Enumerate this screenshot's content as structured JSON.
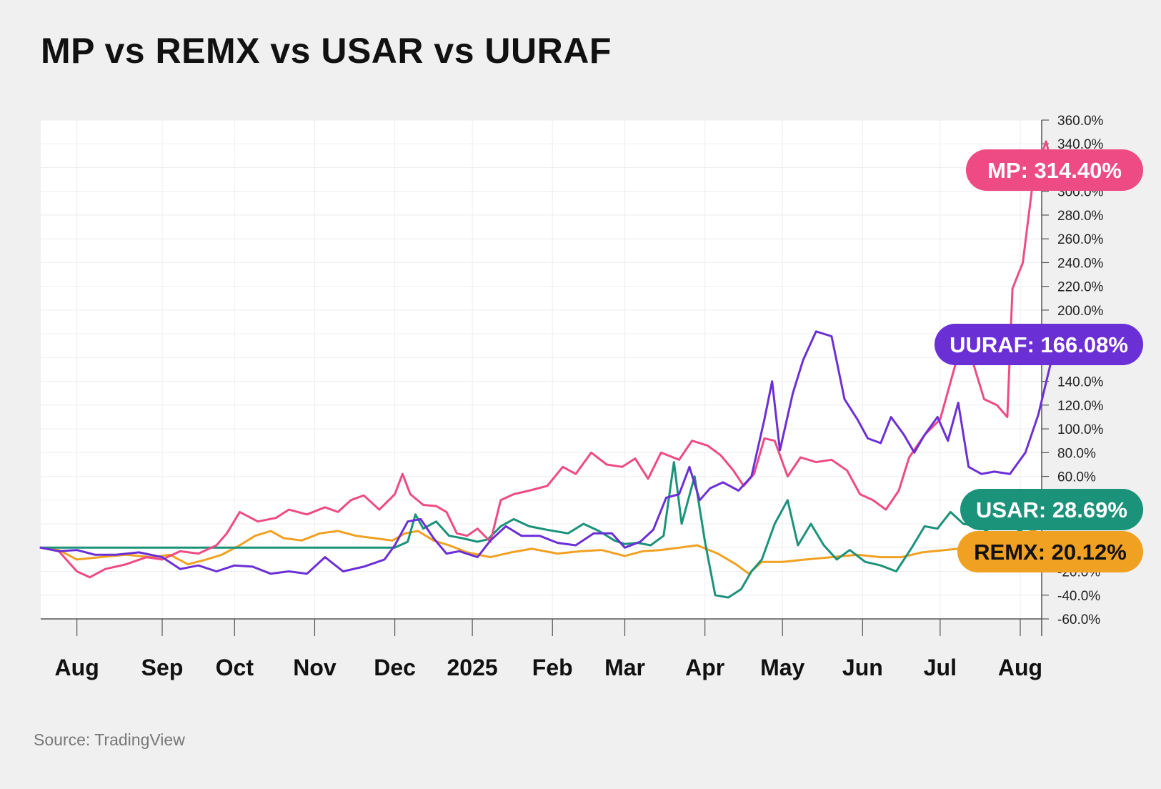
{
  "title": "MP vs REMX vs USAR vs UURAF",
  "source": "Source: TradingView",
  "chart_data": {
    "type": "line",
    "x_type": "date",
    "ylim": [
      -60,
      360
    ],
    "x_range": [
      "2024-07-18",
      "2025-08-01"
    ],
    "y_ticks": [
      "360.0%",
      "340.0%",
      "300.0%",
      "280.0%",
      "260.0%",
      "240.0%",
      "220.0%",
      "200.0%",
      "140.0%",
      "120.0%",
      "100.0%",
      "80.0%",
      "60.0%",
      "-20.0%",
      "-40.0%",
      "-60.0%"
    ],
    "y_tick_values": [
      360,
      340,
      300,
      280,
      260,
      240,
      220,
      200,
      140,
      120,
      100,
      80,
      60,
      -20,
      -40,
      -60
    ],
    "x_ticks": [
      {
        "label": "Aug",
        "date": "2024-08-01"
      },
      {
        "label": "Sep",
        "date": "2024-09-03"
      },
      {
        "label": "Oct",
        "date": "2024-10-01"
      },
      {
        "label": "Nov",
        "date": "2024-11-01"
      },
      {
        "label": "Dec",
        "date": "2024-12-02"
      },
      {
        "label": "2025",
        "date": "2025-01-01"
      },
      {
        "label": "Feb",
        "date": "2025-02-01"
      },
      {
        "label": "Mar",
        "date": "2025-03-01"
      },
      {
        "label": "Apr",
        "date": "2025-04-01"
      },
      {
        "label": "May",
        "date": "2025-05-01"
      },
      {
        "label": "Jun",
        "date": "2025-06-01"
      },
      {
        "label": "Jul",
        "date": "2025-07-01"
      },
      {
        "label": "Aug",
        "date": "2025-08-01"
      }
    ],
    "grid": true,
    "legend": "end-of-line labels on right",
    "series": [
      {
        "name": "MP",
        "label": "MP: 314.40%",
        "color": "#ee4b84",
        "label_text_color": "#ffffff",
        "points": [
          [
            "2024-07-18",
            0
          ],
          [
            "2024-07-25",
            -3
          ],
          [
            "2024-08-01",
            -20
          ],
          [
            "2024-08-06",
            -25
          ],
          [
            "2024-08-12",
            -18
          ],
          [
            "2024-08-20",
            -14
          ],
          [
            "2024-08-28",
            -8
          ],
          [
            "2024-09-03",
            -10
          ],
          [
            "2024-09-10",
            -3
          ],
          [
            "2024-09-17",
            -5
          ],
          [
            "2024-09-24",
            2
          ],
          [
            "2024-09-28",
            12
          ],
          [
            "2024-10-03",
            30
          ],
          [
            "2024-10-10",
            22
          ],
          [
            "2024-10-17",
            25
          ],
          [
            "2024-10-22",
            32
          ],
          [
            "2024-10-29",
            28
          ],
          [
            "2024-11-05",
            34
          ],
          [
            "2024-11-10",
            30
          ],
          [
            "2024-11-15",
            40
          ],
          [
            "2024-11-20",
            44
          ],
          [
            "2024-11-26",
            32
          ],
          [
            "2024-12-02",
            45
          ],
          [
            "2024-12-05",
            62
          ],
          [
            "2024-12-08",
            45
          ],
          [
            "2024-12-13",
            36
          ],
          [
            "2024-12-18",
            35
          ],
          [
            "2024-12-22",
            30
          ],
          [
            "2024-12-26",
            12
          ],
          [
            "2024-12-30",
            10
          ],
          [
            "2025-01-03",
            16
          ],
          [
            "2025-01-08",
            5
          ],
          [
            "2025-01-12",
            40
          ],
          [
            "2025-01-17",
            45
          ],
          [
            "2025-01-23",
            48
          ],
          [
            "2025-01-30",
            52
          ],
          [
            "2025-02-05",
            68
          ],
          [
            "2025-02-10",
            62
          ],
          [
            "2025-02-16",
            80
          ],
          [
            "2025-02-22",
            70
          ],
          [
            "2025-02-28",
            68
          ],
          [
            "2025-03-05",
            75
          ],
          [
            "2025-03-10",
            58
          ],
          [
            "2025-03-15",
            80
          ],
          [
            "2025-03-22",
            74
          ],
          [
            "2025-03-27",
            90
          ],
          [
            "2025-04-02",
            86
          ],
          [
            "2025-04-07",
            78
          ],
          [
            "2025-04-12",
            65
          ],
          [
            "2025-04-16",
            52
          ],
          [
            "2025-04-20",
            62
          ],
          [
            "2025-04-24",
            92
          ],
          [
            "2025-04-28",
            90
          ],
          [
            "2025-05-03",
            60
          ],
          [
            "2025-05-08",
            76
          ],
          [
            "2025-05-14",
            72
          ],
          [
            "2025-05-20",
            74
          ],
          [
            "2025-05-26",
            65
          ],
          [
            "2025-05-31",
            45
          ],
          [
            "2025-06-05",
            40
          ],
          [
            "2025-06-10",
            32
          ],
          [
            "2025-06-15",
            48
          ],
          [
            "2025-06-19",
            76
          ],
          [
            "2025-06-25",
            95
          ],
          [
            "2025-07-01",
            108
          ],
          [
            "2025-07-07",
            155
          ],
          [
            "2025-07-12",
            168
          ],
          [
            "2025-07-18",
            125
          ],
          [
            "2025-07-23",
            120
          ],
          [
            "2025-07-27",
            110
          ],
          [
            "2025-07-29",
            218
          ],
          [
            "2025-08-02",
            240
          ],
          [
            "2025-08-06",
            310
          ],
          [
            "2025-08-11",
            342
          ],
          [
            "2025-08-14",
            314.4
          ]
        ]
      },
      {
        "name": "UURAF",
        "label": "UURAF: 166.08%",
        "color": "#6b2fd6",
        "label_text_color": "#ffffff",
        "points": [
          [
            "2024-07-18",
            0
          ],
          [
            "2024-07-25",
            -3
          ],
          [
            "2024-08-01",
            -2
          ],
          [
            "2024-08-08",
            -6
          ],
          [
            "2024-08-16",
            -6
          ],
          [
            "2024-08-25",
            -4
          ],
          [
            "2024-09-03",
            -8
          ],
          [
            "2024-09-10",
            -18
          ],
          [
            "2024-09-17",
            -15
          ],
          [
            "2024-09-24",
            -20
          ],
          [
            "2024-10-01",
            -15
          ],
          [
            "2024-10-08",
            -16
          ],
          [
            "2024-10-15",
            -22
          ],
          [
            "2024-10-22",
            -20
          ],
          [
            "2024-10-29",
            -22
          ],
          [
            "2024-11-05",
            -8
          ],
          [
            "2024-11-12",
            -20
          ],
          [
            "2024-11-20",
            -16
          ],
          [
            "2024-11-28",
            -10
          ],
          [
            "2024-12-02",
            2
          ],
          [
            "2024-12-07",
            22
          ],
          [
            "2024-12-12",
            24
          ],
          [
            "2024-12-17",
            8
          ],
          [
            "2024-12-22",
            -5
          ],
          [
            "2024-12-27",
            -3
          ],
          [
            "2025-01-03",
            -8
          ],
          [
            "2025-01-08",
            6
          ],
          [
            "2025-01-14",
            18
          ],
          [
            "2025-01-20",
            10
          ],
          [
            "2025-01-27",
            10
          ],
          [
            "2025-02-03",
            4
          ],
          [
            "2025-02-10",
            2
          ],
          [
            "2025-02-17",
            12
          ],
          [
            "2025-02-24",
            12
          ],
          [
            "2025-03-01",
            0
          ],
          [
            "2025-03-07",
            5
          ],
          [
            "2025-03-12",
            15
          ],
          [
            "2025-03-17",
            42
          ],
          [
            "2025-03-22",
            45
          ],
          [
            "2025-03-26",
            68
          ],
          [
            "2025-03-30",
            40
          ],
          [
            "2025-04-03",
            50
          ],
          [
            "2025-04-08",
            55
          ],
          [
            "2025-04-14",
            48
          ],
          [
            "2025-04-19",
            60
          ],
          [
            "2025-04-24",
            108
          ],
          [
            "2025-04-27",
            140
          ],
          [
            "2025-04-30",
            82
          ],
          [
            "2025-05-05",
            130
          ],
          [
            "2025-05-09",
            158
          ],
          [
            "2025-05-14",
            182
          ],
          [
            "2025-05-20",
            178
          ],
          [
            "2025-05-25",
            125
          ],
          [
            "2025-05-30",
            108
          ],
          [
            "2025-06-03",
            92
          ],
          [
            "2025-06-08",
            88
          ],
          [
            "2025-06-12",
            110
          ],
          [
            "2025-06-17",
            95
          ],
          [
            "2025-06-21",
            80
          ],
          [
            "2025-06-25",
            95
          ],
          [
            "2025-06-30",
            110
          ],
          [
            "2025-07-04",
            90
          ],
          [
            "2025-07-08",
            122
          ],
          [
            "2025-07-12",
            68
          ],
          [
            "2025-07-17",
            62
          ],
          [
            "2025-07-22",
            64
          ],
          [
            "2025-07-28",
            62
          ],
          [
            "2025-08-03",
            80
          ],
          [
            "2025-08-08",
            112
          ],
          [
            "2025-08-14",
            166.08
          ]
        ]
      },
      {
        "name": "USAR",
        "label": "USAR: 28.69%",
        "color": "#1b927a",
        "label_text_color": "#ffffff",
        "points": [
          [
            "2024-07-18",
            0
          ],
          [
            "2024-12-02",
            0
          ],
          [
            "2024-12-07",
            5
          ],
          [
            "2024-12-10",
            28
          ],
          [
            "2024-12-13",
            16
          ],
          [
            "2024-12-18",
            22
          ],
          [
            "2024-12-23",
            10
          ],
          [
            "2024-12-28",
            8
          ],
          [
            "2025-01-03",
            5
          ],
          [
            "2025-01-07",
            7
          ],
          [
            "2025-01-12",
            18
          ],
          [
            "2025-01-17",
            24
          ],
          [
            "2025-01-23",
            18
          ],
          [
            "2025-01-30",
            15
          ],
          [
            "2025-02-07",
            12
          ],
          [
            "2025-02-13",
            20
          ],
          [
            "2025-02-19",
            14
          ],
          [
            "2025-02-25",
            6
          ],
          [
            "2025-03-01",
            3
          ],
          [
            "2025-03-06",
            4
          ],
          [
            "2025-03-11",
            2
          ],
          [
            "2025-03-16",
            10
          ],
          [
            "2025-03-20",
            72
          ],
          [
            "2025-03-23",
            20
          ],
          [
            "2025-03-28",
            60
          ],
          [
            "2025-04-01",
            5
          ],
          [
            "2025-04-05",
            -40
          ],
          [
            "2025-04-10",
            -42
          ],
          [
            "2025-04-15",
            -35
          ],
          [
            "2025-04-19",
            -20
          ],
          [
            "2025-04-23",
            -10
          ],
          [
            "2025-04-28",
            20
          ],
          [
            "2025-05-03",
            40
          ],
          [
            "2025-05-07",
            2
          ],
          [
            "2025-05-12",
            20
          ],
          [
            "2025-05-17",
            2
          ],
          [
            "2025-05-22",
            -10
          ],
          [
            "2025-05-27",
            -2
          ],
          [
            "2025-06-02",
            -12
          ],
          [
            "2025-06-08",
            -15
          ],
          [
            "2025-06-14",
            -20
          ],
          [
            "2025-06-20",
            0
          ],
          [
            "2025-06-25",
            18
          ],
          [
            "2025-06-30",
            16
          ],
          [
            "2025-07-05",
            30
          ],
          [
            "2025-07-10",
            20
          ],
          [
            "2025-07-16",
            18
          ],
          [
            "2025-07-22",
            10
          ],
          [
            "2025-07-26",
            8
          ],
          [
            "2025-08-14",
            28.69
          ]
        ]
      },
      {
        "name": "REMX",
        "label": "REMX: 20.12%",
        "color": "#f0a122",
        "label_text_color": "#111111",
        "points": [
          [
            "2024-07-18",
            0
          ],
          [
            "2024-07-25",
            -2
          ],
          [
            "2024-08-01",
            -10
          ],
          [
            "2024-08-10",
            -8
          ],
          [
            "2024-08-20",
            -6
          ],
          [
            "2024-08-30",
            -8
          ],
          [
            "2024-09-06",
            -6
          ],
          [
            "2024-09-13",
            -14
          ],
          [
            "2024-09-20",
            -10
          ],
          [
            "2024-09-26",
            -6
          ],
          [
            "2024-10-03",
            2
          ],
          [
            "2024-10-09",
            10
          ],
          [
            "2024-10-15",
            14
          ],
          [
            "2024-10-20",
            8
          ],
          [
            "2024-10-27",
            6
          ],
          [
            "2024-11-03",
            12
          ],
          [
            "2024-11-10",
            14
          ],
          [
            "2024-11-17",
            10
          ],
          [
            "2024-11-24",
            8
          ],
          [
            "2024-12-01",
            6
          ],
          [
            "2024-12-06",
            12
          ],
          [
            "2024-12-11",
            14
          ],
          [
            "2024-12-17",
            6
          ],
          [
            "2024-12-23",
            2
          ],
          [
            "2024-12-30",
            -4
          ],
          [
            "2025-01-08",
            -8
          ],
          [
            "2025-01-16",
            -4
          ],
          [
            "2025-01-24",
            -1
          ],
          [
            "2025-02-03",
            -5
          ],
          [
            "2025-02-12",
            -3
          ],
          [
            "2025-02-20",
            -2
          ],
          [
            "2025-03-01",
            -7
          ],
          [
            "2025-03-08",
            -3
          ],
          [
            "2025-03-15",
            -2
          ],
          [
            "2025-03-22",
            0
          ],
          [
            "2025-03-29",
            2
          ],
          [
            "2025-04-06",
            -5
          ],
          [
            "2025-04-13",
            -14
          ],
          [
            "2025-04-18",
            -22
          ],
          [
            "2025-04-23",
            -12
          ],
          [
            "2025-05-01",
            -12
          ],
          [
            "2025-05-10",
            -10
          ],
          [
            "2025-05-20",
            -8
          ],
          [
            "2025-05-30",
            -6
          ],
          [
            "2025-06-08",
            -8
          ],
          [
            "2025-06-16",
            -8
          ],
          [
            "2025-06-24",
            -4
          ],
          [
            "2025-07-03",
            -2
          ],
          [
            "2025-07-12",
            0
          ],
          [
            "2025-07-20",
            2
          ],
          [
            "2025-08-14",
            20.12
          ]
        ]
      }
    ]
  }
}
